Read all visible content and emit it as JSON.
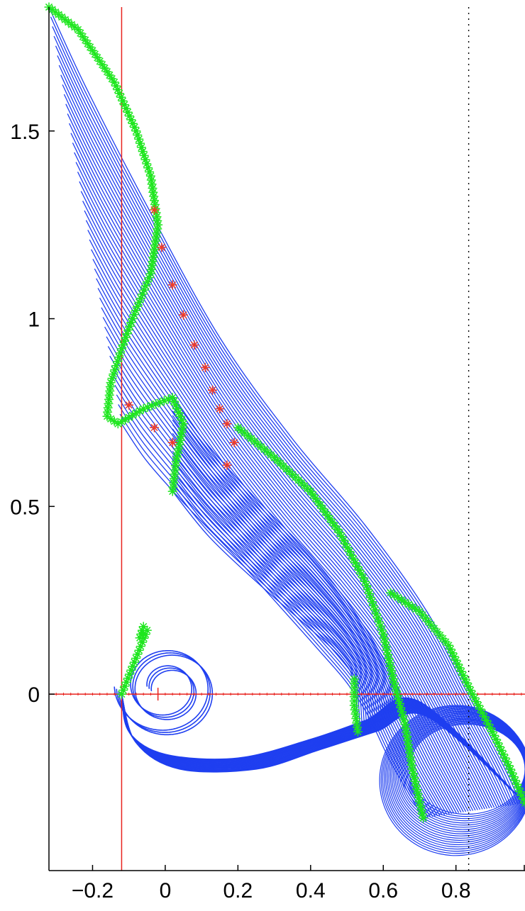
{
  "chart_data": {
    "type": "line",
    "title": "",
    "xlabel": "",
    "ylabel": "",
    "xlim": [
      -0.32,
      0.99
    ],
    "ylim": [
      -0.47,
      1.83
    ],
    "xticks": [
      -0.2,
      0,
      0.2,
      0.4,
      0.6,
      0.8
    ],
    "xtick_labels": [
      "−0.2",
      "0",
      "0.2",
      "0.4",
      "0.6",
      "0.8"
    ],
    "yticks": [
      0,
      0.5,
      1,
      1.5
    ],
    "ytick_labels": [
      "0",
      "0.5",
      "1",
      "1.5"
    ],
    "grid": false,
    "legend": "none",
    "colors": {
      "curves": "#1f3ff0",
      "green_markers": "#1ee61e",
      "red_markers": "#f03c28",
      "ref_lines": "#e8231e",
      "dotted": "#000000"
    },
    "reference_lines": {
      "vertical_red_x": -0.12,
      "horizontal_red_y": 0,
      "vertical_dotted_x": 0.835
    },
    "series": [
      {
        "marker": "*",
        "color": "#1ee61e",
        "points": [
          [
            -0.32,
            1.83
          ],
          [
            -0.24,
            1.77
          ],
          [
            -0.14,
            1.63
          ],
          [
            -0.08,
            1.5
          ],
          [
            -0.04,
            1.38
          ],
          [
            -0.02,
            1.25
          ],
          [
            -0.04,
            1.12
          ],
          [
            -0.09,
            1.0
          ],
          [
            -0.12,
            0.92
          ],
          [
            -0.15,
            0.83
          ],
          [
            -0.16,
            0.74
          ],
          [
            -0.13,
            0.72
          ],
          [
            -0.06,
            0.76
          ],
          [
            0.02,
            0.79
          ],
          [
            0.05,
            0.72
          ],
          [
            0.03,
            0.62
          ],
          [
            0.02,
            0.54
          ]
        ]
      },
      {
        "marker": "*",
        "color": "#f03c28",
        "points": [
          [
            -0.03,
            1.29
          ],
          [
            -0.01,
            1.19
          ],
          [
            0.02,
            1.09
          ],
          [
            0.05,
            1.01
          ],
          [
            0.08,
            0.93
          ],
          [
            0.11,
            0.87
          ],
          [
            0.13,
            0.81
          ],
          [
            0.15,
            0.76
          ],
          [
            0.17,
            0.72
          ],
          [
            0.19,
            0.67
          ],
          [
            0.17,
            0.61
          ],
          [
            -0.1,
            0.77
          ],
          [
            -0.03,
            0.71
          ],
          [
            0.02,
            0.67
          ]
        ]
      },
      {
        "marker": "*",
        "color": "#1ee61e",
        "points": [
          [
            0.2,
            0.71
          ],
          [
            0.3,
            0.63
          ],
          [
            0.4,
            0.54
          ],
          [
            0.48,
            0.43
          ],
          [
            0.55,
            0.3
          ],
          [
            0.6,
            0.16
          ],
          [
            0.63,
            0.03
          ],
          [
            0.66,
            -0.08
          ],
          [
            0.68,
            -0.2
          ],
          [
            0.71,
            -0.33
          ]
        ]
      },
      {
        "marker": "*",
        "color": "#1ee61e",
        "points": [
          [
            0.62,
            0.27
          ],
          [
            0.7,
            0.22
          ],
          [
            0.78,
            0.13
          ],
          [
            0.84,
            0.01
          ],
          [
            0.9,
            -0.1
          ],
          [
            0.95,
            -0.2
          ],
          [
            0.99,
            -0.29
          ]
        ]
      },
      {
        "marker": "*",
        "color": "#1ee61e",
        "points": [
          [
            0.52,
            0.04
          ],
          [
            0.52,
            -0.03
          ],
          [
            0.53,
            -0.1
          ]
        ]
      },
      {
        "marker": "*",
        "color": "#1ee61e",
        "points": [
          [
            -0.06,
            0.18
          ],
          [
            -0.07,
            0.15
          ],
          [
            -0.05,
            0.17
          ],
          [
            -0.12,
            0.0
          ]
        ]
      }
    ]
  }
}
